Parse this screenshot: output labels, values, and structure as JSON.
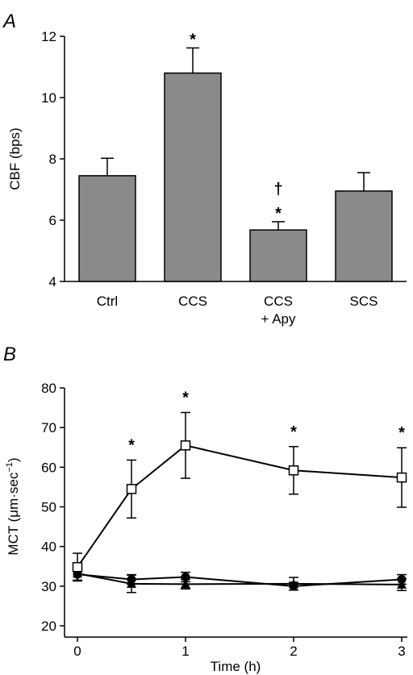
{
  "chart_data": [
    {
      "panel": "A",
      "type": "bar",
      "ylabel": "CBF (bps)",
      "ylim": [
        4,
        12
      ],
      "yticks": [
        4,
        6,
        8,
        10,
        12
      ],
      "categories": [
        [
          "Ctrl"
        ],
        [
          "CCS"
        ],
        [
          "CCS",
          "+ Apy"
        ],
        [
          "SCS"
        ]
      ],
      "values": [
        7.45,
        10.8,
        5.68,
        6.95
      ],
      "errors": [
        0.57,
        0.82,
        0.27,
        0.6
      ],
      "annotations": [
        [],
        [
          "*"
        ],
        [
          "*",
          "†"
        ],
        []
      ],
      "colors": {
        "bar": "#8a8a8a",
        "outline": "#000000"
      },
      "grid": false
    },
    {
      "panel": "B",
      "type": "line",
      "xlabel": "Time (h)",
      "ylabel": {
        "main": "MCT (μm·sec",
        "sup": "−1",
        "close": ")"
      },
      "xlim": [
        0,
        3
      ],
      "ylim": [
        20,
        80
      ],
      "xticks": [
        0,
        1,
        2,
        3
      ],
      "yticks": [
        20,
        30,
        40,
        50,
        60,
        70,
        80
      ],
      "x": [
        0,
        0.5,
        1,
        2,
        3
      ],
      "series": [
        {
          "marker": "open-square",
          "values": [
            34.8,
            54.5,
            65.5,
            59.2,
            57.4
          ],
          "errors": [
            3.5,
            7.3,
            8.3,
            6.0,
            7.5
          ]
        },
        {
          "marker": "filled-circle",
          "values": [
            33.0,
            31.7,
            32.3,
            30.0,
            31.7
          ],
          "errors": [
            1.5,
            1.2,
            1.2,
            1.0,
            1.2
          ]
        },
        {
          "marker": "filled-triangle",
          "values": [
            33.2,
            30.6,
            30.5,
            30.6,
            30.4
          ],
          "errors": [
            1.7,
            2.2,
            1.2,
            1.6,
            1.5
          ]
        }
      ],
      "annotations": [
        {
          "x": 0.5,
          "text": "*"
        },
        {
          "x": 1,
          "text": "*"
        },
        {
          "x": 2,
          "text": "*"
        },
        {
          "x": 3,
          "text": "*"
        }
      ],
      "grid": false
    }
  ]
}
